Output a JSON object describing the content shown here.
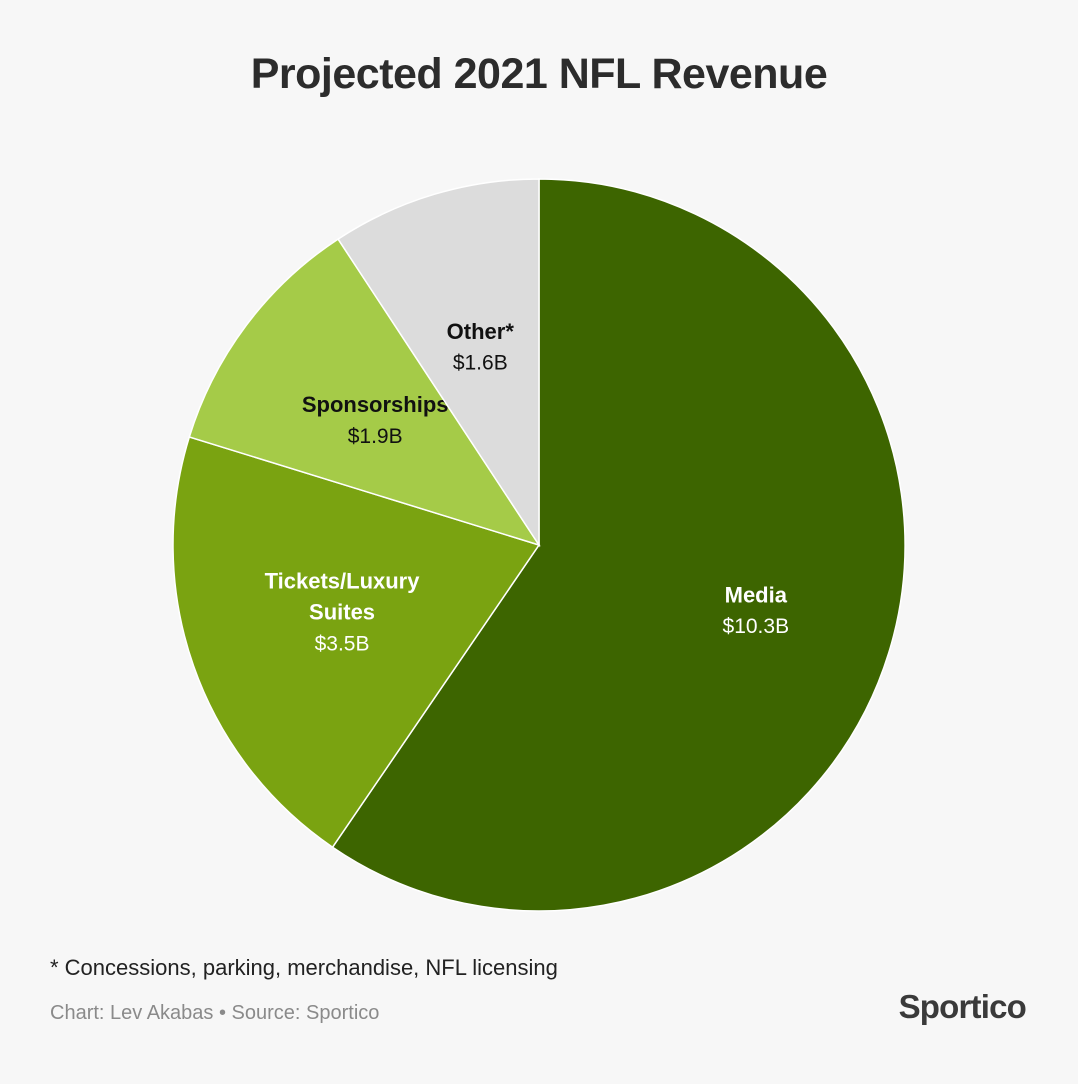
{
  "chart_data": {
    "type": "pie",
    "title": "Projected 2021 NFL Revenue",
    "unit": "$B",
    "slices": [
      {
        "name": "Media",
        "label_lines": [
          "Media"
        ],
        "value": 10.3,
        "value_label": "$10.3B",
        "color": "#3d6500",
        "text_color": "#ffffff"
      },
      {
        "name": "Tickets/Luxury Suites",
        "label_lines": [
          "Tickets/Luxury",
          "Suites"
        ],
        "value": 3.5,
        "value_label": "$3.5B",
        "color": "#7aa311",
        "text_color": "#ffffff"
      },
      {
        "name": "Sponsorships",
        "label_lines": [
          "Sponsorships"
        ],
        "value": 1.9,
        "value_label": "$1.9B",
        "color": "#a5cb48",
        "text_color": "#111111"
      },
      {
        "name": "Other*",
        "label_lines": [
          "Other*"
        ],
        "value": 1.6,
        "value_label": "$1.6B",
        "color": "#dcdcdc",
        "text_color": "#111111"
      }
    ],
    "start": "12 o'clock",
    "direction": "clockwise"
  },
  "footnote": "* Concessions, parking, merchandise, NFL licensing",
  "credit": "Chart: Lev Akabas • Source: Sportico",
  "brand": "Sportico"
}
